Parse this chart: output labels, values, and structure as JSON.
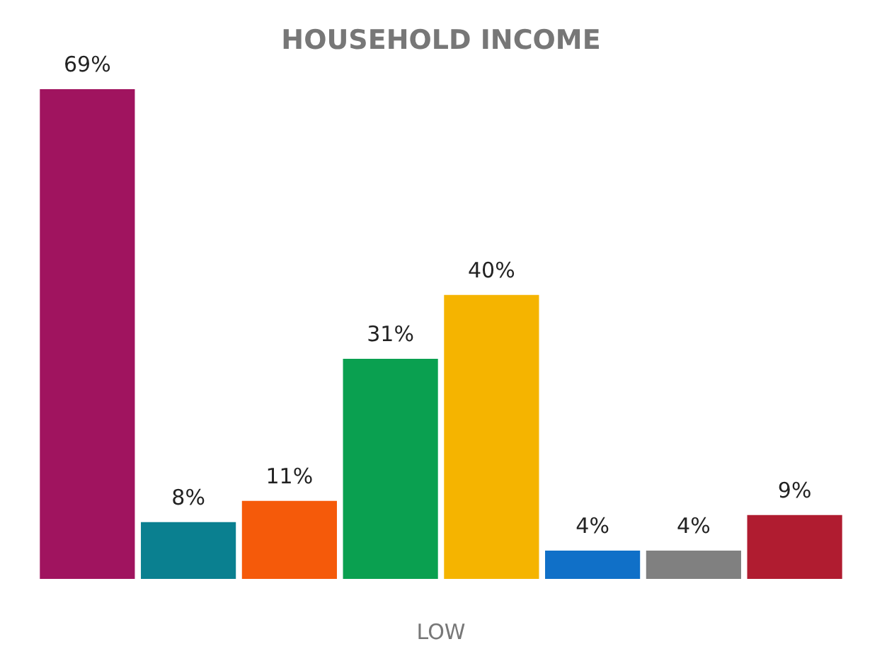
{
  "chart_data": {
    "type": "bar",
    "title": "HOUSEHOLD INCOME",
    "xlabel": "LOW",
    "categories": [
      null,
      null,
      null,
      null,
      null,
      null,
      null,
      null
    ],
    "values": [
      69,
      8,
      11,
      31,
      40,
      4,
      4,
      9
    ],
    "colors": [
      "#a0145f",
      "#0a8090",
      "#f55a0a",
      "#0aa050",
      "#f5b400",
      "#1070c8",
      "#808080",
      "#b01c30"
    ],
    "value_labels": [
      "69%",
      "8%",
      "11%",
      "31%",
      "40%",
      "4%",
      "4%",
      "9%"
    ],
    "tick_labels": false
  }
}
